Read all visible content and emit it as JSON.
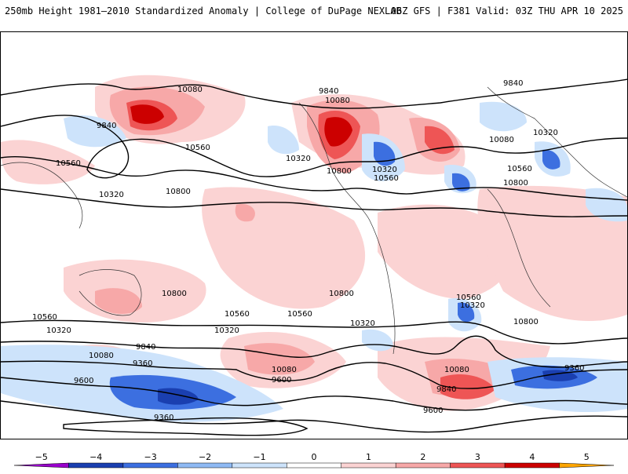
{
  "header": {
    "title_left": "250mb Height 1981–2010 Standardized Anomaly | College of DuPage NEXLAB",
    "title_right": "06Z GFS | F381 Valid: 03Z THU APR 10 2025"
  },
  "map": {
    "contours": [
      {
        "label": "10080"
      },
      {
        "label": "9840"
      },
      {
        "label": "10560"
      },
      {
        "label": "10320"
      },
      {
        "label": "10800"
      },
      {
        "label": "9360"
      },
      {
        "label": "9600"
      }
    ],
    "anomaly_colors": {
      "strong_pos": "#cc0000",
      "mid_pos": "#ee5555",
      "weak_pos": "#f7a8a8",
      "faint_pos": "#fbd3d3",
      "faint_neg": "#cde3fb",
      "weak_neg": "#8fbaf4",
      "mid_neg": "#3c6fe0",
      "strong_neg": "#1a3fb0"
    }
  },
  "colorbar": {
    "ticks": [
      "−5",
      "−4",
      "−3",
      "−2",
      "−1",
      "0",
      "1",
      "2",
      "3",
      "4",
      "5"
    ],
    "colors": [
      "#9900cc",
      "#1a3fb0",
      "#3c6fe0",
      "#8fbaf4",
      "#cde3fb",
      "#ffffff",
      "#fbd3d3",
      "#f7a8a8",
      "#ee5555",
      "#cc0000",
      "#ffa500"
    ]
  }
}
